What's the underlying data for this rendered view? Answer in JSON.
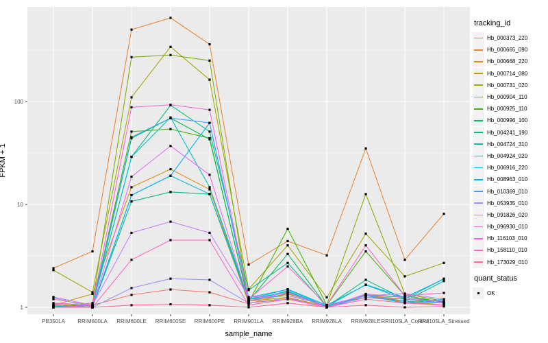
{
  "chart_data": {
    "type": "line",
    "title": "",
    "xlabel": "sample_name",
    "ylabel": "FPKM + 1",
    "yscale": "log10",
    "ylim": [
      1,
      830
    ],
    "yticks": [
      1,
      10,
      100
    ],
    "ytick_labels": [
      "1",
      "10",
      "100"
    ],
    "y_minor_gridlines": [
      3.162,
      31.62,
      316.2
    ],
    "grid": "on",
    "legend_position": "right",
    "legend_title": "tracking_id",
    "legend2": {
      "title": "quant_status",
      "items": [
        "OK"
      ]
    },
    "point_shape": "small-black-square",
    "categories": [
      "PB350LA",
      "RRIM600LA",
      "RRIM600LE",
      "RRIM600SE",
      "RRIM600PE",
      "RRIM901LA",
      "RRIM928BA",
      "RRIM928LA",
      "RRIM928LE",
      "RRII105LA_Control",
      "RRII105LA_Stressed"
    ],
    "series": [
      {
        "name": "Hb_000373_220",
        "color": "#F8766D",
        "values": [
          1.2,
          1.05,
          1.32,
          1.49,
          1.4,
          1.08,
          1.38,
          1.02,
          1.3,
          1.12,
          1.05
        ]
      },
      {
        "name": "Hb_000665_090",
        "color": "#EA8331",
        "values": [
          2.4,
          3.5,
          500,
          650,
          360,
          2.6,
          4.4,
          3.2,
          35,
          2.9,
          8.1
        ]
      },
      {
        "name": "Hb_000668_220",
        "color": "#D89000",
        "values": [
          1.05,
          1.35,
          14.7,
          22,
          14,
          1.15,
          1.25,
          1.02,
          1.3,
          1.2,
          1.1
        ]
      },
      {
        "name": "Hb_000714_080",
        "color": "#C09B00",
        "values": [
          1.08,
          1.02,
          10.7,
          13.2,
          12.6,
          1.1,
          1.2,
          1.05,
          1.25,
          1.15,
          1.05
        ]
      },
      {
        "name": "Hb_000731_020",
        "color": "#A3A500",
        "values": [
          2.3,
          1.4,
          110,
          340,
          163,
          1.5,
          4.0,
          1.25,
          5.2,
          2.0,
          2.7
        ]
      },
      {
        "name": "Hb_000904_110",
        "color": "#7CAE00",
        "values": [
          1.02,
          1.1,
          270,
          283,
          250,
          1.15,
          1.35,
          1.05,
          12.6,
          1.35,
          1.15
        ]
      },
      {
        "name": "Hb_000925_110",
        "color": "#39B600",
        "values": [
          1.0,
          1.05,
          51,
          54,
          44,
          1.12,
          5.8,
          1.05,
          3.5,
          1.3,
          1.12
        ]
      },
      {
        "name": "Hb_000996_100",
        "color": "#00BB4E",
        "values": [
          1.05,
          1.0,
          44,
          69,
          43,
          1.15,
          3.3,
          1.02,
          1.32,
          1.25,
          1.13
        ]
      },
      {
        "name": "Hb_004241_190",
        "color": "#00BF7D",
        "values": [
          1.02,
          1.05,
          29,
          92,
          51,
          1.47,
          2.7,
          1.02,
          1.85,
          1.2,
          1.1
        ]
      },
      {
        "name": "Hb_004724_310",
        "color": "#00C1A3",
        "values": [
          1.05,
          1.0,
          10.7,
          13.2,
          12.6,
          1.2,
          1.42,
          1.02,
          1.3,
          1.15,
          1.8
        ]
      },
      {
        "name": "Hb_004924_020",
        "color": "#00BFC4",
        "values": [
          1.0,
          1.05,
          29,
          70,
          14.7,
          1.2,
          1.5,
          1.05,
          1.65,
          1.2,
          1.9
        ]
      },
      {
        "name": "Hb_006916_220",
        "color": "#00BAE0",
        "values": [
          1.02,
          1.0,
          12.3,
          19,
          12.6,
          1.15,
          1.45,
          1.0,
          1.3,
          1.1,
          1.2
        ]
      },
      {
        "name": "Hb_008963_010",
        "color": "#00B0F6",
        "values": [
          1.05,
          1.0,
          12.3,
          19,
          62,
          1.25,
          1.49,
          1.02,
          1.66,
          1.25,
          1.88
        ]
      },
      {
        "name": "Hb_010369_010",
        "color": "#35A2FF",
        "values": [
          1.0,
          1.05,
          45,
          69,
          62,
          1.2,
          1.3,
          1.05,
          1.3,
          1.15,
          1.1
        ]
      },
      {
        "name": "Hb_053935_010",
        "color": "#9590FF",
        "values": [
          1.24,
          1.0,
          1.54,
          1.9,
          1.85,
          1.1,
          1.23,
          1.0,
          1.25,
          1.2,
          1.15
        ]
      },
      {
        "name": "Hb_091826_020",
        "color": "#C77CFF",
        "values": [
          1.26,
          1.05,
          5.3,
          6.8,
          5.3,
          1.26,
          1.3,
          1.05,
          1.3,
          1.36,
          1.2
        ]
      },
      {
        "name": "Hb_096930_010",
        "color": "#E76BF3",
        "values": [
          1.0,
          1.0,
          18.6,
          37,
          19.4,
          1.15,
          1.4,
          1.0,
          1.35,
          1.25,
          1.1
        ]
      },
      {
        "name": "Hb_116103_010",
        "color": "#FA62DB",
        "values": [
          1.1,
          1.05,
          88,
          93,
          83,
          1.2,
          2.5,
          1.05,
          4.0,
          1.3,
          1.38
        ]
      },
      {
        "name": "Hb_158110_010",
        "color": "#FF62BC",
        "values": [
          1.05,
          1.0,
          2.9,
          4.5,
          4.5,
          1.05,
          1.2,
          1.0,
          1.2,
          1.1,
          1.05
        ]
      },
      {
        "name": "Hb_173029_010",
        "color": "#FF6A98",
        "values": [
          1.0,
          1.0,
          1.05,
          1.07,
          1.05,
          1.0,
          1.1,
          1.0,
          1.05,
          1.0,
          1.02
        ]
      }
    ],
    "colors": {
      "panel_background": "#EBEBEB",
      "major_grid": "#FFFFFF",
      "minor_grid": "#F7F7F7",
      "point": "#000000",
      "tick_label_text": "#4D4D4D",
      "axis_title_text": "#000000",
      "legend_key_background": "#F2F2F2"
    }
  }
}
